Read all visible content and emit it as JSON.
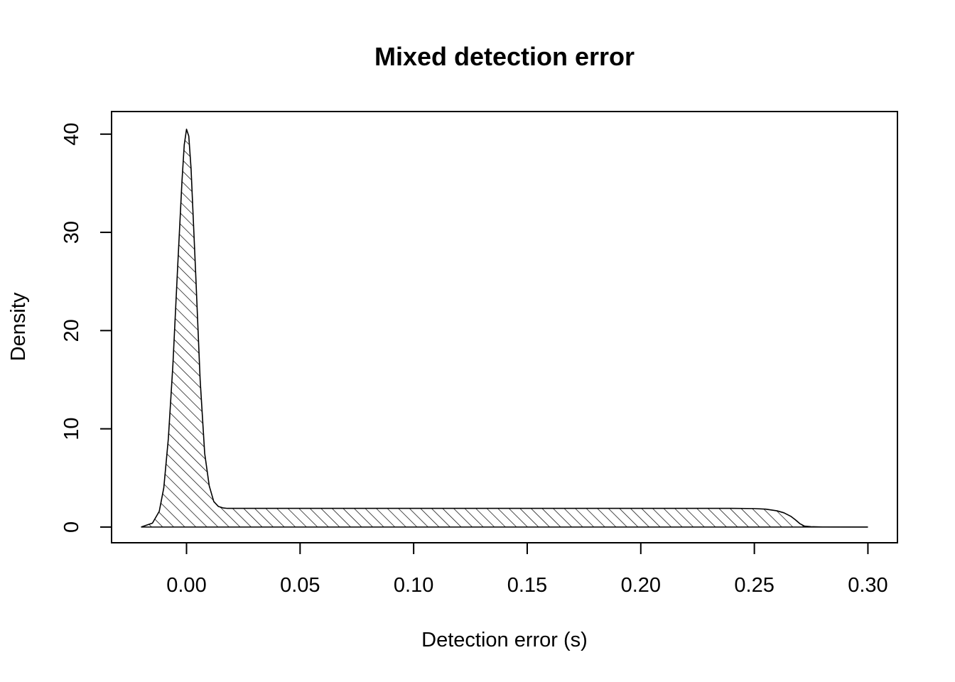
{
  "chart_data": {
    "type": "area",
    "title": "Mixed detection error",
    "xlabel": "Detection error (s)",
    "ylabel": "Density",
    "xlim": [
      -0.033,
      0.313
    ],
    "ylim": [
      -1.6,
      42.3
    ],
    "x_ticks": [
      0.0,
      0.05,
      0.1,
      0.15,
      0.2,
      0.25,
      0.3
    ],
    "x_tick_labels": [
      "0.00",
      "0.05",
      "0.10",
      "0.15",
      "0.20",
      "0.25",
      "0.30"
    ],
    "y_ticks": [
      0,
      10,
      20,
      30,
      40
    ],
    "y_tick_labels": [
      "0",
      "10",
      "20",
      "30",
      "40"
    ],
    "fill": "diagonal-hatch",
    "line_color": "#000000",
    "background": "#ffffff",
    "grid": false,
    "legend": "none",
    "series": [
      {
        "x": [
          -0.02,
          -0.015,
          -0.012,
          -0.01,
          -0.008,
          -0.006,
          -0.004,
          -0.002,
          -0.001,
          0.0,
          0.001,
          0.002,
          0.004,
          0.006,
          0.008,
          0.01,
          0.012,
          0.014,
          0.016,
          0.018,
          0.02,
          0.03,
          0.05,
          0.1,
          0.15,
          0.2,
          0.24,
          0.25,
          0.255,
          0.26,
          0.263,
          0.266,
          0.268,
          0.27,
          0.272,
          0.275,
          0.28,
          0.3
        ],
        "y": [
          0.0,
          0.4,
          1.6,
          4.0,
          9.0,
          16.5,
          26.0,
          35.2,
          38.9,
          40.5,
          39.8,
          36.5,
          26.0,
          15.0,
          7.5,
          4.2,
          2.6,
          2.1,
          1.95,
          1.9,
          1.9,
          1.9,
          1.9,
          1.9,
          1.9,
          1.9,
          1.9,
          1.88,
          1.82,
          1.65,
          1.45,
          1.1,
          0.75,
          0.35,
          0.1,
          0.03,
          0.01,
          0.0
        ]
      }
    ]
  }
}
